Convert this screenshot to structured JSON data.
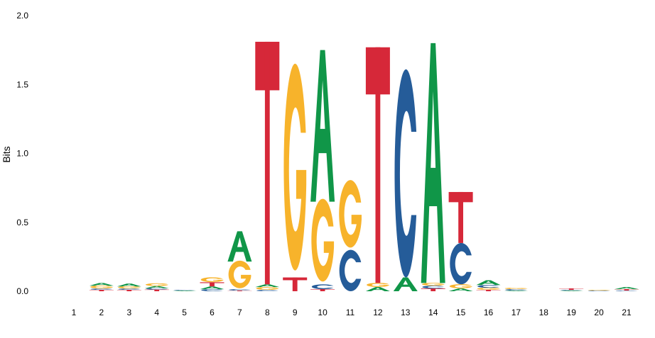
{
  "chart_data": {
    "type": "sequence-logo",
    "ylabel": "Bits",
    "ylim": [
      0,
      2.0
    ],
    "y_ticks": [
      "0.0",
      "0.5",
      "1.0",
      "1.5",
      "2.0"
    ],
    "positions": [
      "1",
      "2",
      "3",
      "4",
      "5",
      "6",
      "7",
      "8",
      "9",
      "10",
      "11",
      "12",
      "13",
      "14",
      "15",
      "16",
      "17",
      "18",
      "19",
      "20",
      "21"
    ],
    "colors": {
      "A": "#109648",
      "C": "#255C99",
      "G": "#F7B32B",
      "T": "#D62839"
    },
    "columns": [
      [],
      [
        {
          "b": "T",
          "h": 0.01
        },
        {
          "b": "C",
          "h": 0.01
        },
        {
          "b": "G",
          "h": 0.02
        },
        {
          "b": "A",
          "h": 0.02
        }
      ],
      [
        {
          "b": "T",
          "h": 0.01
        },
        {
          "b": "C",
          "h": 0.01
        },
        {
          "b": "G",
          "h": 0.015
        },
        {
          "b": "A",
          "h": 0.02
        }
      ],
      [
        {
          "b": "T",
          "h": 0.012
        },
        {
          "b": "C",
          "h": 0.01
        },
        {
          "b": "A",
          "h": 0.015
        },
        {
          "b": "G",
          "h": 0.02
        }
      ],
      [
        {
          "b": "A",
          "h": 0.005
        },
        {
          "b": "C",
          "h": 0.005
        }
      ],
      [
        {
          "b": "C",
          "h": 0.015
        },
        {
          "b": "A",
          "h": 0.02
        },
        {
          "b": "T",
          "h": 0.03
        },
        {
          "b": "G",
          "h": 0.035
        }
      ],
      [
        {
          "b": "T",
          "h": 0.005
        },
        {
          "b": "C",
          "h": 0.01
        },
        {
          "b": "G",
          "h": 0.2
        },
        {
          "b": "A",
          "h": 0.22
        }
      ],
      [
        {
          "b": "C",
          "h": 0.01
        },
        {
          "b": "G",
          "h": 0.02
        },
        {
          "b": "A",
          "h": 0.02
        },
        {
          "b": "T",
          "h": 1.76
        }
      ],
      [
        {
          "b": "T",
          "h": 0.1
        },
        {
          "b": "G",
          "h": 1.5
        }
      ],
      [
        {
          "b": "T",
          "h": 0.015
        },
        {
          "b": "C",
          "h": 0.035
        },
        {
          "b": "G",
          "h": 0.6
        },
        {
          "b": "A",
          "h": 1.1
        }
      ],
      [
        {
          "b": "C",
          "h": 0.3
        },
        {
          "b": "G",
          "h": 0.49
        }
      ],
      [
        {
          "b": "A",
          "h": 0.03
        },
        {
          "b": "G",
          "h": 0.03
        },
        {
          "b": "T",
          "h": 1.71
        }
      ],
      [
        {
          "b": "A",
          "h": 0.1
        },
        {
          "b": "C",
          "h": 1.51
        }
      ],
      [
        {
          "b": "T",
          "h": 0.02
        },
        {
          "b": "C",
          "h": 0.02
        },
        {
          "b": "G",
          "h": 0.02
        },
        {
          "b": "A",
          "h": 1.74
        }
      ],
      [
        {
          "b": "A",
          "h": 0.02
        },
        {
          "b": "G",
          "h": 0.03
        },
        {
          "b": "C",
          "h": 0.3
        },
        {
          "b": "T",
          "h": 0.37
        }
      ],
      [
        {
          "b": "T",
          "h": 0.01
        },
        {
          "b": "G",
          "h": 0.015
        },
        {
          "b": "C",
          "h": 0.02
        },
        {
          "b": "A",
          "h": 0.035
        }
      ],
      [
        {
          "b": "A",
          "h": 0.005
        },
        {
          "b": "C",
          "h": 0.01
        },
        {
          "b": "G",
          "h": 0.01
        }
      ],
      [],
      [
        {
          "b": "A",
          "h": 0.005
        },
        {
          "b": "C",
          "h": 0.005
        },
        {
          "b": "T",
          "h": 0.01
        }
      ],
      [
        {
          "b": "C",
          "h": 0.005
        },
        {
          "b": "G",
          "h": 0.005
        }
      ],
      [
        {
          "b": "C",
          "h": 0.005
        },
        {
          "b": "T",
          "h": 0.01
        },
        {
          "b": "A",
          "h": 0.015
        }
      ]
    ]
  }
}
